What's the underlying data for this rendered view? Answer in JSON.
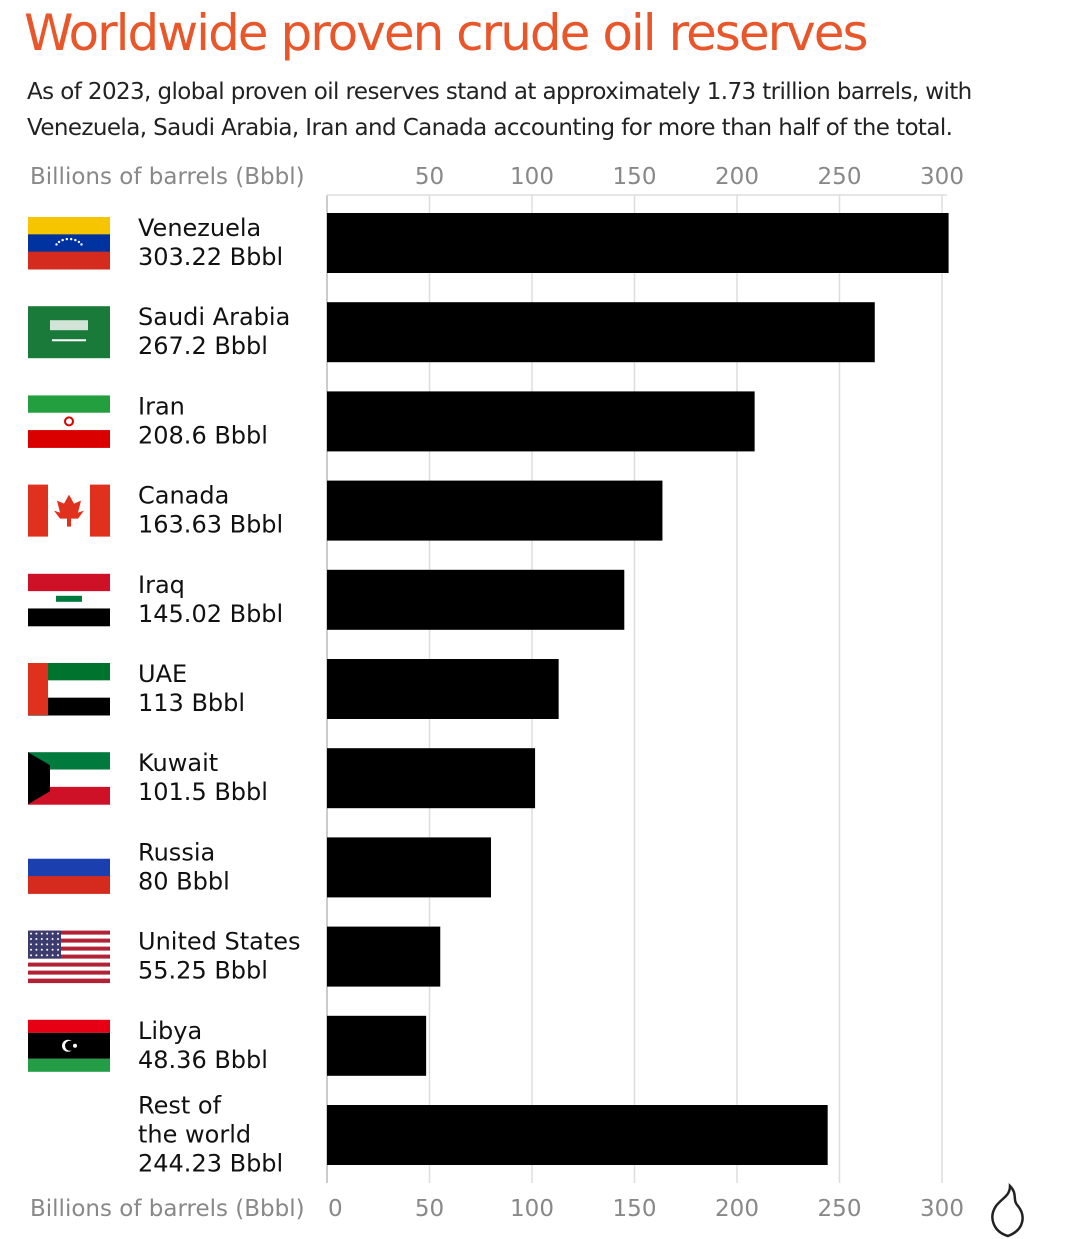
{
  "title": "Worldwide proven crude oil reserves",
  "subtitle": "As of 2023, global proven oil reserves stand at approximately 1.73 trillion barrels, with Venezuela, Saudi Arabia, Iran and Canada accounting for more than half of the total.",
  "chart_data": {
    "type": "bar",
    "orientation": "horizontal",
    "xlabel": "Billions of barrels (Bbbl)",
    "xlim": [
      0,
      300
    ],
    "top_ticks": [
      50,
      100,
      150,
      200,
      250,
      300
    ],
    "bottom_ticks": [
      0,
      50,
      100,
      150,
      200,
      250,
      300
    ],
    "grid": true,
    "bar_color": "#000000",
    "categories": [
      {
        "name": "Venezuela",
        "value": 303.22,
        "label": "303.22 Bbbl",
        "flag": "venezuela"
      },
      {
        "name": "Saudi Arabia",
        "value": 267.2,
        "label": "267.2 Bbbl",
        "flag": "saudi-arabia"
      },
      {
        "name": "Iran",
        "value": 208.6,
        "label": "208.6 Bbbl",
        "flag": "iran"
      },
      {
        "name": "Canada",
        "value": 163.63,
        "label": "163.63 Bbbl",
        "flag": "canada"
      },
      {
        "name": "Iraq",
        "value": 145.02,
        "label": " 145.02 Bbbl",
        "flag": "iraq"
      },
      {
        "name": "UAE",
        "value": 113,
        "label": "113 Bbbl",
        "flag": "uae"
      },
      {
        "name": "Kuwait",
        "value": 101.5,
        "label": "101.5 Bbbl",
        "flag": "kuwait"
      },
      {
        "name": "Russia",
        "value": 80,
        "label": "80 Bbbl",
        "flag": "russia"
      },
      {
        "name": "United States",
        "value": 55.25,
        "label": "55.25 Bbbl",
        "flag": "usa"
      },
      {
        "name": "Libya",
        "value": 48.36,
        "label": "48.36 Bbbl",
        "flag": "libya"
      },
      {
        "name": "Rest of the world",
        "value": 244.23,
        "label": "244.23 Bbbl",
        "flag": ""
      }
    ]
  },
  "colors": {
    "title": "#e8562a",
    "axis_text": "#888888"
  },
  "logo": "Al Jazeera"
}
